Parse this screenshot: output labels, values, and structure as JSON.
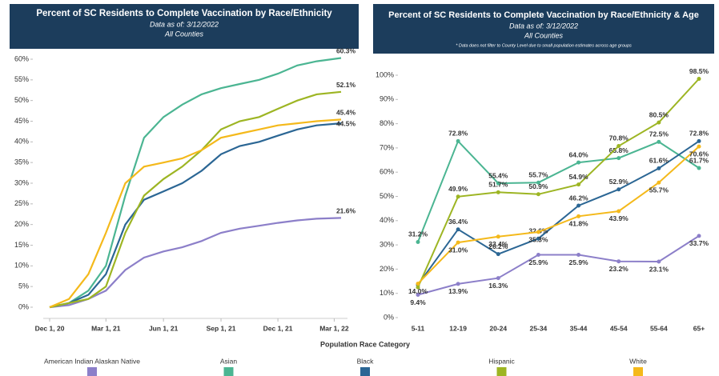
{
  "chart_data": [
    {
      "type": "line",
      "title": "Percent of SC Residents to Complete Vaccination by Race/Ethnicity",
      "subtitle": "Data as of: 3/12/2022",
      "scope": "All Counties",
      "x": [
        "2020-12-01",
        "2021-01-01",
        "2021-02-01",
        "2021-03-01",
        "2021-04-01",
        "2021-05-01",
        "2021-06-01",
        "2021-07-01",
        "2021-08-01",
        "2021-09-01",
        "2021-10-01",
        "2021-11-01",
        "2021-12-01",
        "2022-01-01",
        "2022-02-01",
        "2022-03-12"
      ],
      "xlim": [
        "2020-12-01",
        "2022-03-12"
      ],
      "xticks": [
        {
          "value": "2020-12-01",
          "label": "Dec 1, 20"
        },
        {
          "value": "2021-03-01",
          "label": "Mar 1, 21"
        },
        {
          "value": "2021-06-01",
          "label": "Jun 1, 21"
        },
        {
          "value": "2021-09-01",
          "label": "Sep 1, 21"
        },
        {
          "value": "2021-12-01",
          "label": "Dec 1, 21"
        },
        {
          "value": "2022-03-01",
          "label": "Mar 1, 22"
        }
      ],
      "ylim": [
        0,
        60
      ],
      "yticks": [
        {
          "value": 0,
          "label": "0%"
        },
        {
          "value": 5,
          "label": "5%"
        },
        {
          "value": 10,
          "label": "10%"
        },
        {
          "value": 15,
          "label": "15%"
        },
        {
          "value": 20,
          "label": "20%"
        },
        {
          "value": 25,
          "label": "25%"
        },
        {
          "value": 30,
          "label": "30%"
        },
        {
          "value": 35,
          "label": "35%"
        },
        {
          "value": 40,
          "label": "40%"
        },
        {
          "value": 45,
          "label": "45%"
        },
        {
          "value": 50,
          "label": "50%"
        },
        {
          "value": 55,
          "label": "55%"
        },
        {
          "value": 60,
          "label": "60%"
        }
      ],
      "grid": false,
      "series": [
        {
          "name": "American Indian Alaskan Native",
          "color": "#8c7fc9",
          "values": [
            0,
            0.5,
            2,
            4,
            9,
            12,
            13.5,
            14.5,
            16,
            18,
            19,
            19.7,
            20.4,
            21,
            21.4,
            21.6
          ],
          "value_labels": [
            null,
            null,
            null,
            null,
            null,
            null,
            null,
            null,
            null,
            null,
            null,
            null,
            null,
            null,
            null,
            "21.6%"
          ]
        },
        {
          "name": "Asian",
          "color": "#4bb592",
          "values": [
            0,
            1,
            4,
            10,
            27,
            41,
            46,
            49,
            51.5,
            53,
            54,
            55,
            56.5,
            58.5,
            59.5,
            60.3
          ],
          "value_labels": [
            null,
            null,
            null,
            null,
            null,
            null,
            null,
            null,
            null,
            null,
            null,
            null,
            null,
            null,
            null,
            "60.3%"
          ]
        },
        {
          "name": "Black",
          "color": "#2b6694",
          "values": [
            0,
            1,
            3,
            8,
            20,
            26,
            28,
            30,
            33,
            37,
            39,
            40,
            41.5,
            43,
            44,
            44.5
          ],
          "value_labels": [
            null,
            null,
            null,
            null,
            null,
            null,
            null,
            null,
            null,
            null,
            null,
            null,
            null,
            null,
            null,
            "44.5%"
          ]
        },
        {
          "name": "Hispanic",
          "color": "#9db523",
          "values": [
            0,
            1,
            2,
            5,
            18,
            27,
            31,
            34,
            38,
            43,
            45,
            46,
            48,
            50,
            51.5,
            52.1
          ],
          "value_labels": [
            null,
            null,
            null,
            null,
            null,
            null,
            null,
            null,
            null,
            null,
            null,
            null,
            null,
            null,
            null,
            "52.1%"
          ]
        },
        {
          "name": "White",
          "color": "#f4b91b",
          "values": [
            0,
            2,
            8,
            18,
            30,
            34,
            35,
            36,
            38,
            41,
            42,
            43,
            44,
            44.5,
            45,
            45.4
          ],
          "value_labels": [
            null,
            null,
            null,
            null,
            null,
            null,
            null,
            null,
            null,
            null,
            null,
            null,
            null,
            null,
            null,
            "45.4%"
          ]
        }
      ]
    },
    {
      "type": "line",
      "title": "Percent of SC Residents to Complete Vaccination by Race/Ethnicity & Age",
      "subtitle": "Data as of: 3/12/2022",
      "scope": "All Counties",
      "note": "* Data does not filter to County Level due to small population estimates across age groups",
      "categories": [
        "5-11",
        "12-19",
        "20-24",
        "25-34",
        "35-44",
        "45-54",
        "55-64",
        "65+"
      ],
      "ylim": [
        0,
        100
      ],
      "yticks": [
        {
          "value": 0,
          "label": "0%"
        },
        {
          "value": 10,
          "label": "10%"
        },
        {
          "value": 20,
          "label": "20%"
        },
        {
          "value": 30,
          "label": "30%"
        },
        {
          "value": 40,
          "label": "40%"
        },
        {
          "value": 50,
          "label": "50%"
        },
        {
          "value": 60,
          "label": "60%"
        },
        {
          "value": 70,
          "label": "70%"
        },
        {
          "value": 80,
          "label": "80%"
        },
        {
          "value": 90,
          "label": "90%"
        },
        {
          "value": 100,
          "label": "100%"
        }
      ],
      "grid": false,
      "series": [
        {
          "name": "American Indian Alaskan Native",
          "color": "#8c7fc9",
          "values": [
            9.4,
            13.9,
            16.3,
            25.9,
            25.9,
            23.2,
            23.1,
            33.7
          ],
          "value_labels": [
            "9.4%",
            "13.9%",
            "16.3%",
            "25.9%",
            "25.9%",
            "23.2%",
            "23.1%",
            "33.7%"
          ]
        },
        {
          "name": "Asian",
          "color": "#4bb592",
          "values": [
            31.2,
            72.8,
            55.4,
            55.7,
            64.0,
            65.8,
            72.5,
            61.7
          ],
          "value_labels": [
            "31.2%",
            "72.8%",
            "55.4%",
            "55.7%",
            "64.0%",
            "65.8%",
            "72.5%",
            "61.7%"
          ]
        },
        {
          "name": "Black",
          "color": "#2b6694",
          "values": [
            13.5,
            36.4,
            26.2,
            32.6,
            46.2,
            52.9,
            61.6,
            72.8
          ],
          "value_labels": [
            null,
            "36.4%",
            "26.2%",
            "32.6%",
            "46.2%",
            "52.9%",
            "61.6%",
            "72.8%"
          ]
        },
        {
          "name": "Hispanic",
          "color": "#9db523",
          "values": [
            12.5,
            49.9,
            51.7,
            50.9,
            54.9,
            70.8,
            80.5,
            98.5
          ],
          "value_labels": [
            null,
            "49.9%",
            "51.7%",
            "50.9%",
            "54.9%",
            "70.8%",
            "80.5%",
            "98.5%"
          ]
        },
        {
          "name": "White",
          "color": "#f4b91b",
          "values": [
            14.0,
            31.0,
            33.4,
            35.3,
            41.8,
            43.9,
            55.7,
            70.6
          ],
          "value_labels": [
            "14.0%",
            "31.0%",
            "33.4%",
            "35.3%",
            "41.8%",
            "43.9%",
            "55.7%",
            "70.6%"
          ]
        }
      ]
    }
  ],
  "legend": {
    "title": "Population Race Category"
  }
}
